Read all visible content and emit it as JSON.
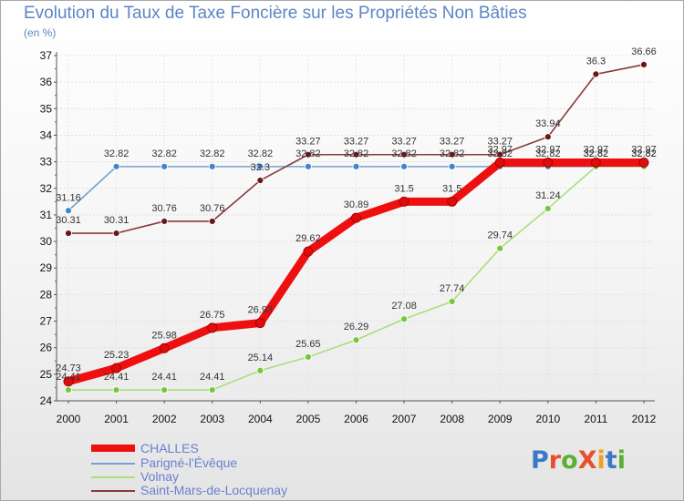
{
  "title": "Evolution du Taux de Taxe Foncière sur les Propriétés Non Bâties",
  "subtitle": "(en %)",
  "logo": {
    "text": "ProXiti",
    "letter_colors": [
      "#3a78c8",
      "#e8502d",
      "#5bb034",
      "#e8502d",
      "#f0a020",
      "#3a78c8",
      "#5bb034"
    ]
  },
  "chart_data": {
    "type": "line",
    "title": "Evolution du Taux de Taxe Foncière sur les Propriétés Non Bâties",
    "ylabel": "(en %)",
    "xlabel": "",
    "x": [
      "2000",
      "2001",
      "2002",
      "2003",
      "2004",
      "2005",
      "2006",
      "2007",
      "2008",
      "2009",
      "2010",
      "2011",
      "2012"
    ],
    "ylim": [
      24,
      37
    ],
    "yticks": [
      24,
      25,
      26,
      27,
      28,
      29,
      30,
      31,
      32,
      33,
      34,
      35,
      36,
      37
    ],
    "series": [
      {
        "name": "CHALLES",
        "color": "#ee1010",
        "marker": "#dd0d0d",
        "values": [
          24.73,
          25.23,
          25.98,
          26.75,
          26.93,
          29.62,
          30.89,
          31.5,
          31.5,
          32.97,
          32.97,
          32.97,
          32.97
        ],
        "labels": [
          "24.73",
          "25.23",
          "25.98",
          "26.75",
          "26.93",
          "29.62",
          "30.89",
          "31.5",
          "31.5",
          "32.97",
          "32.97",
          "32.97",
          "32.97"
        ]
      },
      {
        "name": "Parigné-l'Évêque",
        "color": "#72a3d2",
        "marker": "#3f86c8",
        "values": [
          31.16,
          32.82,
          32.82,
          32.82,
          32.82,
          32.82,
          32.82,
          32.82,
          32.82,
          32.82,
          32.82,
          32.82,
          32.82
        ],
        "labels": [
          "31.16",
          "32.82",
          "32.82",
          "32.82",
          "32.82",
          "32.82",
          "32.82",
          "32.82",
          "32.82",
          "32.82",
          "32.82",
          "32.82",
          "32.82"
        ]
      },
      {
        "name": "Volnay",
        "color": "#a8e07a",
        "marker": "#73c83a",
        "values": [
          24.41,
          24.41,
          24.41,
          24.41,
          25.14,
          25.65,
          26.29,
          27.08,
          27.74,
          29.74,
          31.24,
          32.82,
          32.82
        ],
        "labels": [
          "24.41",
          "24.41",
          "24.41",
          "24.41",
          "25.14",
          "25.65",
          "26.29",
          "27.08",
          "27.74",
          "29.74",
          "31.24",
          "32.82",
          "32.82"
        ]
      },
      {
        "name": "Saint-Mars-de-Locquenay",
        "color": "#8a3a3a",
        "marker": "#6b1616",
        "values": [
          30.31,
          30.31,
          30.76,
          30.76,
          32.3,
          33.27,
          33.27,
          33.27,
          33.27,
          33.27,
          33.94,
          36.3,
          36.66
        ],
        "labels": [
          "30.31",
          "30.31",
          "30.76",
          "30.76",
          "32.3",
          "33.27",
          "33.27",
          "33.27",
          "33.27",
          "33.27",
          "33.94",
          "36.3",
          "36.66"
        ]
      }
    ]
  }
}
